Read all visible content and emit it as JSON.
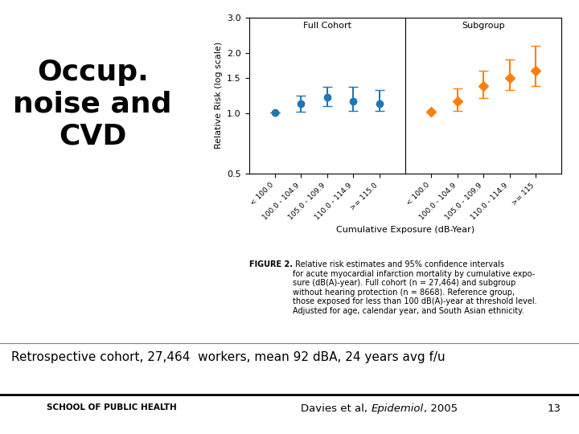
{
  "chart_data": {
    "type": "errorbar",
    "title": "Occup.\nnoise and\nCVD",
    "ylabel": "Relative Risk (log scale)",
    "xlabel": "Cumulative Exposure (dB-Year)",
    "log": "y",
    "categories": [
      "< 100.0",
      "100.0 - 104.9",
      "105.0 - 109.9",
      "110.0 - 114.9",
      ">= 115.0",
      null,
      "< 100.0",
      "100.0 - 104.9",
      "105.0 - 109.9",
      "110.0 - 114.9",
      ">= 115"
    ],
    "series": [
      {
        "name": "Full Cohort",
        "marker": "circle",
        "values": [
          1.01,
          1.12,
          1.2,
          1.15,
          1.12,
          null,
          null,
          null,
          null,
          null,
          null
        ],
        "error_low": [
          0.0,
          0.1,
          0.12,
          0.12,
          0.09,
          null,
          null,
          null,
          null,
          null,
          null
        ],
        "error_high": [
          0.0,
          0.1,
          0.15,
          0.2,
          0.18,
          null,
          null,
          null,
          null,
          null,
          null
        ]
      },
      {
        "name": "Subgroup",
        "marker": "diamond",
        "values": [
          null,
          null,
          null,
          null,
          null,
          null,
          1.02,
          1.15,
          1.37,
          1.5,
          1.62
        ],
        "error_low": [
          null,
          null,
          null,
          null,
          null,
          null,
          0.0,
          0.12,
          0.18,
          0.2,
          0.25
        ],
        "error_high": [
          null,
          null,
          null,
          null,
          null,
          null,
          0.0,
          0.18,
          0.25,
          0.35,
          0.55
        ]
      }
    ],
    "ylim": [
      0.5,
      3
    ],
    "yticks": [
      0.5,
      {
        "value": 1,
        "label": "1.0"
      },
      1.5,
      {
        "value": 2,
        "label": "2.0"
      },
      {
        "value": 3,
        "label": "3.0"
      }
    ],
    "caption_bold": "FIGURE 2.",
    "caption": " Relative risk estimates and 95% confidence intervals\nfor acute myocardial infarction mortality by cumulative expo-\nsure (dB(A)-year). Full cohort (n = 27,464) and subgroup\nwithout hearing protection (n = 8668). Reference group,\nthose exposed for less than 100 dB(A)-year at threshold level.\nAdjusted for age, calendar year, and South Asian ethnicity.",
    "note": "Retrospective cohort, 27,464  workers, mean 92 dBA, 24 years avg f/u",
    "footer": {
      "left": "SCHOOL OF PUBLIC HEALTH",
      "citation": "Davies et al, ",
      "citation_italic": "Epidemiol",
      "year": ", 2005",
      "page": "13"
    }
  }
}
